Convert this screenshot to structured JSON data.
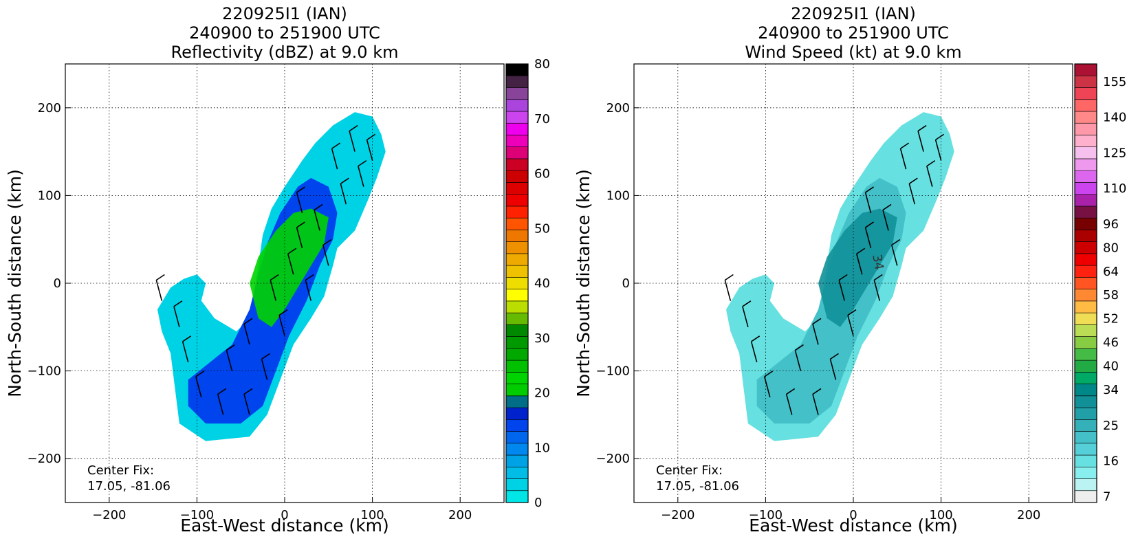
{
  "chart_data": [
    {
      "type": "heatmap",
      "title_lines": [
        "220925I1 (IAN)",
        "240900 to 251900 UTC",
        "Reflectivity (dBZ) at 9.0 km"
      ],
      "xlabel": "East-West distance (km)",
      "ylabel": "North-South distance (km)",
      "xlim": [
        -250,
        250
      ],
      "ylim": [
        -250,
        250
      ],
      "x_ticks": [
        -200,
        -100,
        0,
        100,
        200
      ],
      "y_ticks": [
        -200,
        -100,
        0,
        100,
        200
      ],
      "x_tick_labels": [
        "−200",
        "−100",
        "0",
        "100",
        "200"
      ],
      "y_tick_labels": [
        "−200",
        "−100",
        "0",
        "100",
        "200"
      ],
      "grid": true,
      "annotation_lines": [
        "Center Fix:",
        "17.05, -81.06"
      ],
      "colorbar": {
        "min": 0,
        "max": 80,
        "tick_values": [
          0,
          10,
          20,
          30,
          40,
          50,
          60,
          70,
          80
        ],
        "tick_labels": [
          "0",
          "10",
          "20",
          "30",
          "40",
          "50",
          "60",
          "70",
          "80"
        ],
        "colors": [
          "#00e6e6",
          "#00d2e6",
          "#00bce6",
          "#00a2e6",
          "#0088ee",
          "#0066ee",
          "#0044ee",
          "#0022cc",
          "#006e87",
          "#00cc00",
          "#00d400",
          "#00c000",
          "#00a800",
          "#009900",
          "#008800",
          "#66bb00",
          "#bbdd00",
          "#ffff00",
          "#eedd00",
          "#eec200",
          "#eeaa00",
          "#ee9000",
          "#ee7700",
          "#ff5500",
          "#ff2200",
          "#ee0000",
          "#dd0000",
          "#cc0000",
          "#cc0022",
          "#dd0077",
          "#ee00bb",
          "#ee00ee",
          "#cc44ee",
          "#aa44dd",
          "#884499",
          "#442244",
          "#000000"
        ]
      }
    },
    {
      "type": "heatmap",
      "title_lines": [
        "220925I1 (IAN)",
        "240900 to 251900 UTC",
        "Wind Speed (kt) at 9.0 km"
      ],
      "xlabel": "East-West distance (km)",
      "ylabel": "North-South distance (km)",
      "xlim": [
        -250,
        250
      ],
      "ylim": [
        -250,
        250
      ],
      "x_ticks": [
        -200,
        -100,
        0,
        100,
        200
      ],
      "y_ticks": [
        -200,
        -100,
        0,
        100,
        200
      ],
      "x_tick_labels": [
        "−200",
        "−100",
        "0",
        "100",
        "200"
      ],
      "y_tick_labels": [
        "−200",
        "−100",
        "0",
        "100",
        "200"
      ],
      "grid": true,
      "contour_label": "34",
      "annotation_lines": [
        "Center Fix:",
        "17.05, -81.06"
      ],
      "colorbar": {
        "levels": 37,
        "tick_labels": [
          "7",
          "16",
          "25",
          "34",
          "40",
          "46",
          "52",
          "58",
          "64",
          "80",
          "96",
          "110",
          "125",
          "140",
          "155"
        ],
        "tick_level_index": [
          0.5,
          3.5,
          6.5,
          9.5,
          11.5,
          13.5,
          15.5,
          17.5,
          19.5,
          21.5,
          23.5,
          26.5,
          29.5,
          32.5,
          35.5
        ],
        "colors": [
          "#eeeeee",
          "#bbf2f2",
          "#88eeee",
          "#66e0e0",
          "#55d0d8",
          "#44c0c8",
          "#33b0b8",
          "#22a0a8",
          "#119098",
          "#008888",
          "#00aa66",
          "#22aa44",
          "#44bb44",
          "#88cc44",
          "#bbdd55",
          "#eedd55",
          "#ffbb44",
          "#ff8833",
          "#ff5522",
          "#ff2211",
          "#ee0000",
          "#cc0000",
          "#aa0000",
          "#770000",
          "#771144",
          "#aa22aa",
          "#cc44ee",
          "#dd66ee",
          "#ee99ee",
          "#f5c0ee",
          "#ffb0cc",
          "#ff99aa",
          "#ff8888",
          "#ff6666",
          "#ee4455",
          "#cc3344",
          "#aa1133"
        ]
      }
    }
  ]
}
